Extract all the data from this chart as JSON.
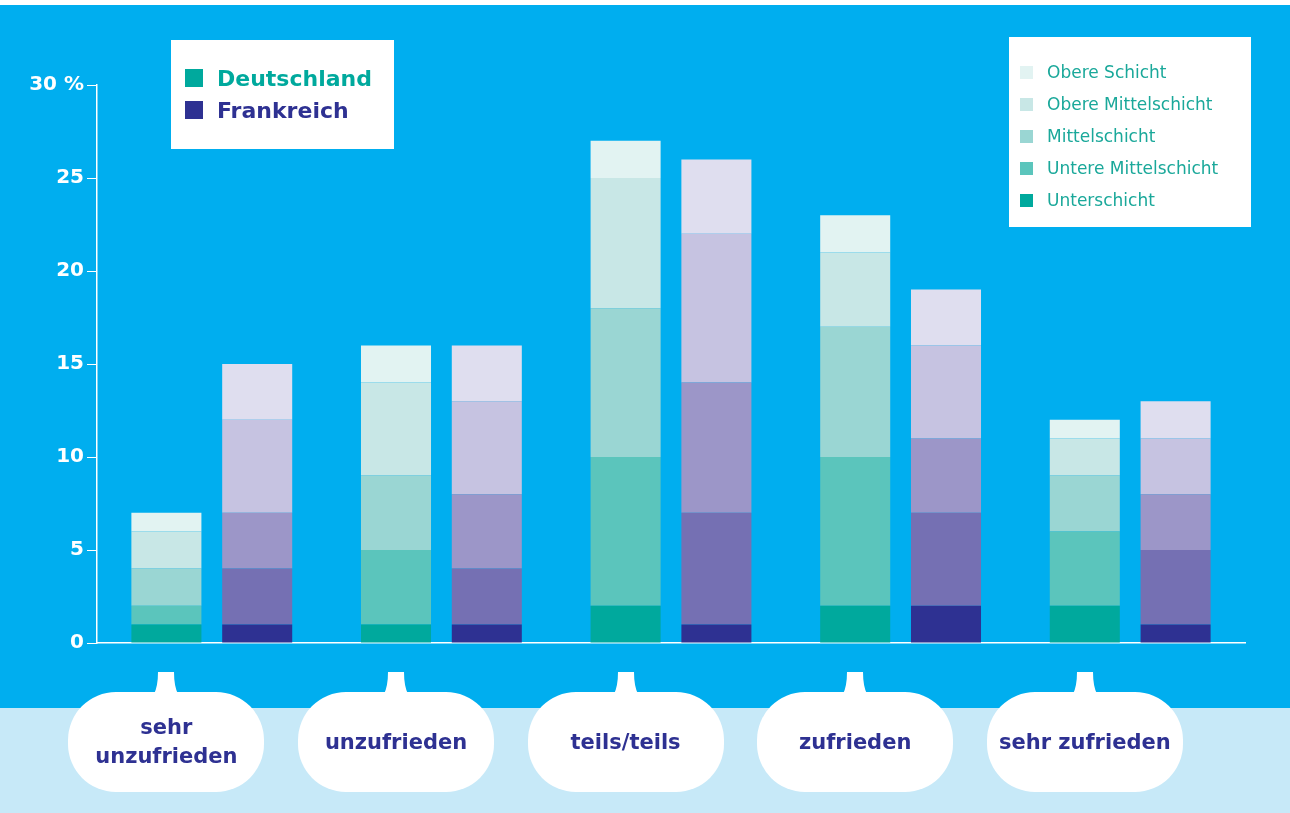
{
  "chart_data": {
    "type": "bar",
    "stacked": true,
    "categories": [
      "sehr unzufrieden",
      null,
      "unzufrieden",
      null,
      "teils/teils",
      null,
      "zufrieden",
      null,
      "sehr zufrieden",
      null
    ],
    "annotations": [
      "Deutschland",
      "Frankreich"
    ],
    "series": [
      {
        "name": "Unterschicht",
        "color": "#00a99d",
        "colors": [
          "#00a99d",
          "#2e3192",
          "#00a99d",
          "#2e3192",
          "#00a99d",
          "#2e3192",
          "#00a99d",
          "#2e3192",
          "#00a99d",
          "#2e3192"
        ],
        "values": [
          1,
          1,
          1,
          1,
          2,
          1,
          2,
          2,
          2,
          1
        ]
      },
      {
        "name": "Untere Mittelschicht",
        "color": "#5bc5bc",
        "colors": [
          "#5bc5bc",
          "#7570b3",
          "#5bc5bc",
          "#7570b3",
          "#5bc5bc",
          "#7570b3",
          "#5bc5bc",
          "#7570b3",
          "#5bc5bc",
          "#7570b3"
        ],
        "values": [
          1,
          3,
          4,
          3,
          8,
          6,
          8,
          5,
          4,
          4
        ]
      },
      {
        "name": "Mittelschicht",
        "color": "#9ad6d3",
        "colors": [
          "#9ad6d3",
          "#9c96c8",
          "#9ad6d3",
          "#9c96c8",
          "#9ad6d3",
          "#9c96c8",
          "#9ad6d3",
          "#9c96c8",
          "#9ad6d3",
          "#9c96c8"
        ],
        "values": [
          2,
          3,
          4,
          4,
          8,
          7,
          7,
          4,
          3,
          3
        ]
      },
      {
        "name": "Obere Mittelschicht",
        "color": "#c8e7e6",
        "colors": [
          "#c8e7e6",
          "#c6c3e1",
          "#c8e7e6",
          "#c6c3e1",
          "#c8e7e6",
          "#c6c3e1",
          "#c8e7e6",
          "#c6c3e1",
          "#c8e7e6",
          "#c6c3e1"
        ],
        "values": [
          2,
          5,
          5,
          5,
          7,
          8,
          4,
          5,
          2,
          3
        ]
      },
      {
        "name": "Obere Schicht",
        "color": "#e2f3f2",
        "colors": [
          "#e2f3f2",
          "#dfdeef",
          "#e2f3f2",
          "#dfdeef",
          "#e2f3f2",
          "#dfdeef",
          "#e2f3f2",
          "#dfdeef",
          "#e2f3f2",
          "#dfdeef"
        ],
        "values": [
          1,
          3,
          2,
          3,
          2,
          4,
          2,
          3,
          1,
          2
        ]
      }
    ],
    "ylim": [
      0,
      30
    ],
    "yticks": [
      0,
      5,
      10,
      15,
      20,
      25,
      {
        "value": 30,
        "label": "30 %"
      }
    ],
    "grid": false,
    "legend": "top right"
  }
}
